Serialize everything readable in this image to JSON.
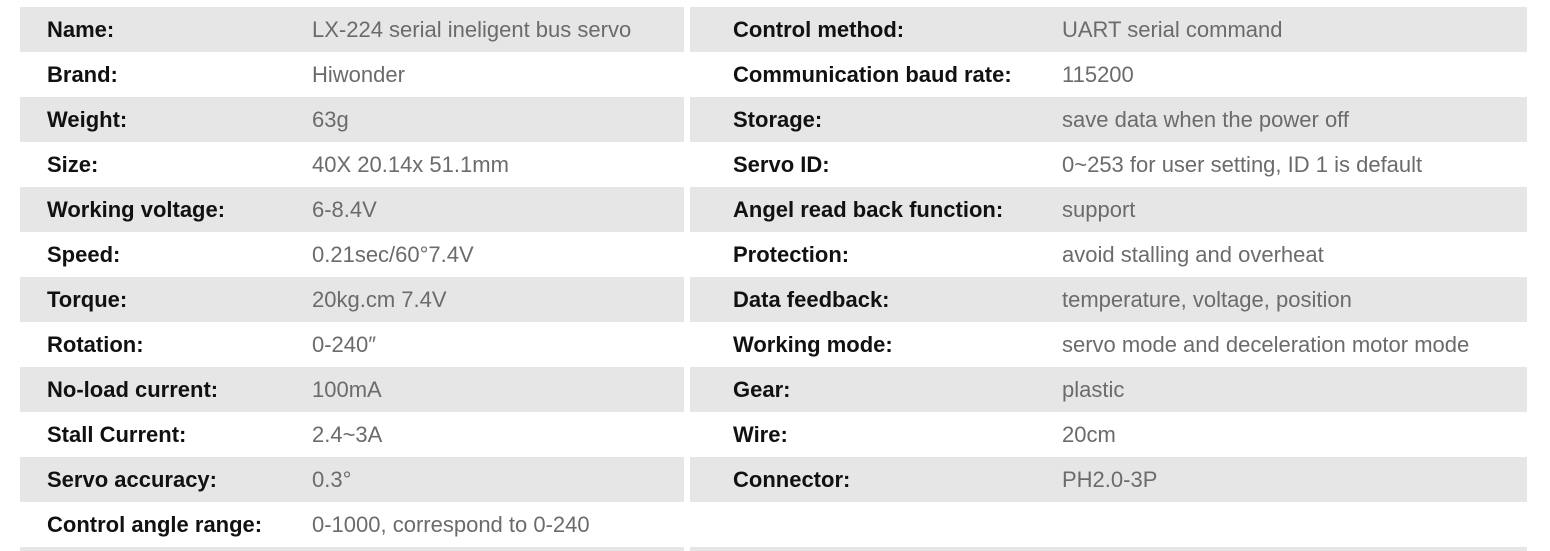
{
  "specs": {
    "left": [
      {
        "label": "Name:",
        "value": "LX-224 serial ineligent bus servo"
      },
      {
        "label": "Brand:",
        "value": "Hiwonder"
      },
      {
        "label": "Weight:",
        "value": "63g"
      },
      {
        "label": "Size:",
        "value": "40X 20.14x 51.1mm"
      },
      {
        "label": "Working voltage:",
        "value": "6-8.4V"
      },
      {
        "label": "Speed:",
        "value": "0.21sec/60°7.4V"
      },
      {
        "label": "Torque:",
        "value": "20kg.cm 7.4V"
      },
      {
        "label": "Rotation:",
        "value": "0-240″"
      },
      {
        "label": "No-load current:",
        "value": "100mA"
      },
      {
        "label": "Stall Current:",
        "value": "2.4~3A"
      },
      {
        "label": "Servo accuracy:",
        "value": "0.3°"
      },
      {
        "label": "Control angle range:",
        "value": "0-1000, correspond to 0-240"
      }
    ],
    "right": [
      {
        "label": "Control method:",
        "value": "UART serial command"
      },
      {
        "label": "Communication baud rate:",
        "value": "115200"
      },
      {
        "label": "Storage:",
        "value": "save data when the power off"
      },
      {
        "label": "Servo ID:",
        "value": "0~253 for user setting, ID 1 is default"
      },
      {
        "label": "Angel read back function:",
        "value": "support"
      },
      {
        "label": "Protection:",
        "value": "avoid stalling and overheat"
      },
      {
        "label": "Data feedback:",
        "value": "temperature, voltage, position"
      },
      {
        "label": "Working mode:",
        "value": "servo mode and deceleration motor mode"
      },
      {
        "label": "Gear:",
        "value": "plastic"
      },
      {
        "label": "Wire:",
        "value": "20cm"
      },
      {
        "label": "Connector:",
        "value": "PH2.0-3P"
      }
    ]
  },
  "colors": {
    "row_shade": "#e6e6e6",
    "label_text": "#111111",
    "value_text": "#6b6b6b"
  }
}
